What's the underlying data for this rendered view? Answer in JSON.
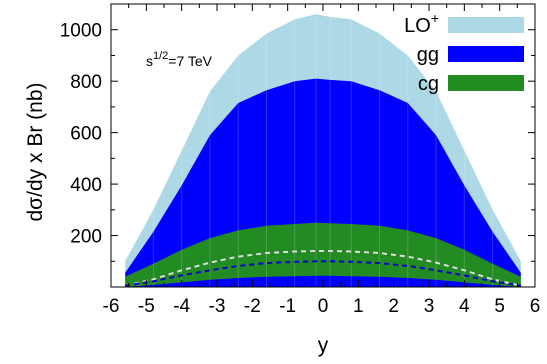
{
  "chart_data": {
    "type": "area",
    "xlabel": "y",
    "ylabel": "dσ/dy x Br (nb)",
    "xlim": [
      -6,
      6
    ],
    "ylim": [
      0,
      1100
    ],
    "x_ticks": [
      -6,
      -5,
      -4,
      -3,
      -2,
      -1,
      0,
      1,
      2,
      3,
      4,
      5,
      6
    ],
    "y_ticks": [
      200,
      400,
      600,
      800,
      1000
    ],
    "annotation": {
      "base": "s",
      "sup": "1/2",
      "rest": "=7 TeV"
    },
    "legend_position": "top-right",
    "x": [
      -5.6,
      -4.8,
      -4.0,
      -3.2,
      -2.4,
      -1.6,
      -0.8,
      -0.2,
      0.2,
      0.8,
      1.6,
      2.4,
      3.2,
      4.0,
      4.8,
      5.6
    ],
    "bands": [
      {
        "name": "LO",
        "name_sup": "+",
        "color": "#add8e6",
        "lower": [
          0,
          0,
          0,
          0,
          0,
          0,
          0,
          0,
          0,
          0,
          0,
          0,
          0,
          0,
          0,
          0
        ],
        "upper": [
          100,
          300,
          530,
          760,
          900,
          985,
          1040,
          1060,
          1050,
          1040,
          985,
          900,
          760,
          530,
          300,
          100
        ]
      },
      {
        "name": "gg",
        "color": "#0000ff",
        "lower": [
          0,
          0,
          0,
          0,
          0,
          0,
          0,
          0,
          0,
          0,
          0,
          0,
          0,
          0,
          0,
          0
        ],
        "upper": [
          55,
          215,
          395,
          590,
          715,
          765,
          800,
          810,
          805,
          800,
          765,
          715,
          590,
          395,
          215,
          55
        ]
      },
      {
        "name": "cg",
        "color": "#228b22",
        "lower": [
          0,
          8,
          18,
          28,
          35,
          40,
          42,
          44,
          44,
          42,
          40,
          35,
          28,
          18,
          8,
          0
        ],
        "upper": [
          40,
          90,
          145,
          190,
          220,
          238,
          245,
          250,
          248,
          245,
          238,
          220,
          190,
          145,
          90,
          40
        ]
      }
    ],
    "dashed_lines": [
      {
        "color": "#dddddd",
        "values": [
          5,
          30,
          65,
          95,
          118,
          132,
          138,
          140,
          140,
          138,
          132,
          118,
          95,
          65,
          30,
          5
        ]
      },
      {
        "color": "#0000cc",
        "values": [
          5,
          22,
          45,
          65,
          82,
          93,
          98,
          100,
          100,
          98,
          93,
          82,
          65,
          45,
          22,
          5
        ]
      }
    ]
  }
}
